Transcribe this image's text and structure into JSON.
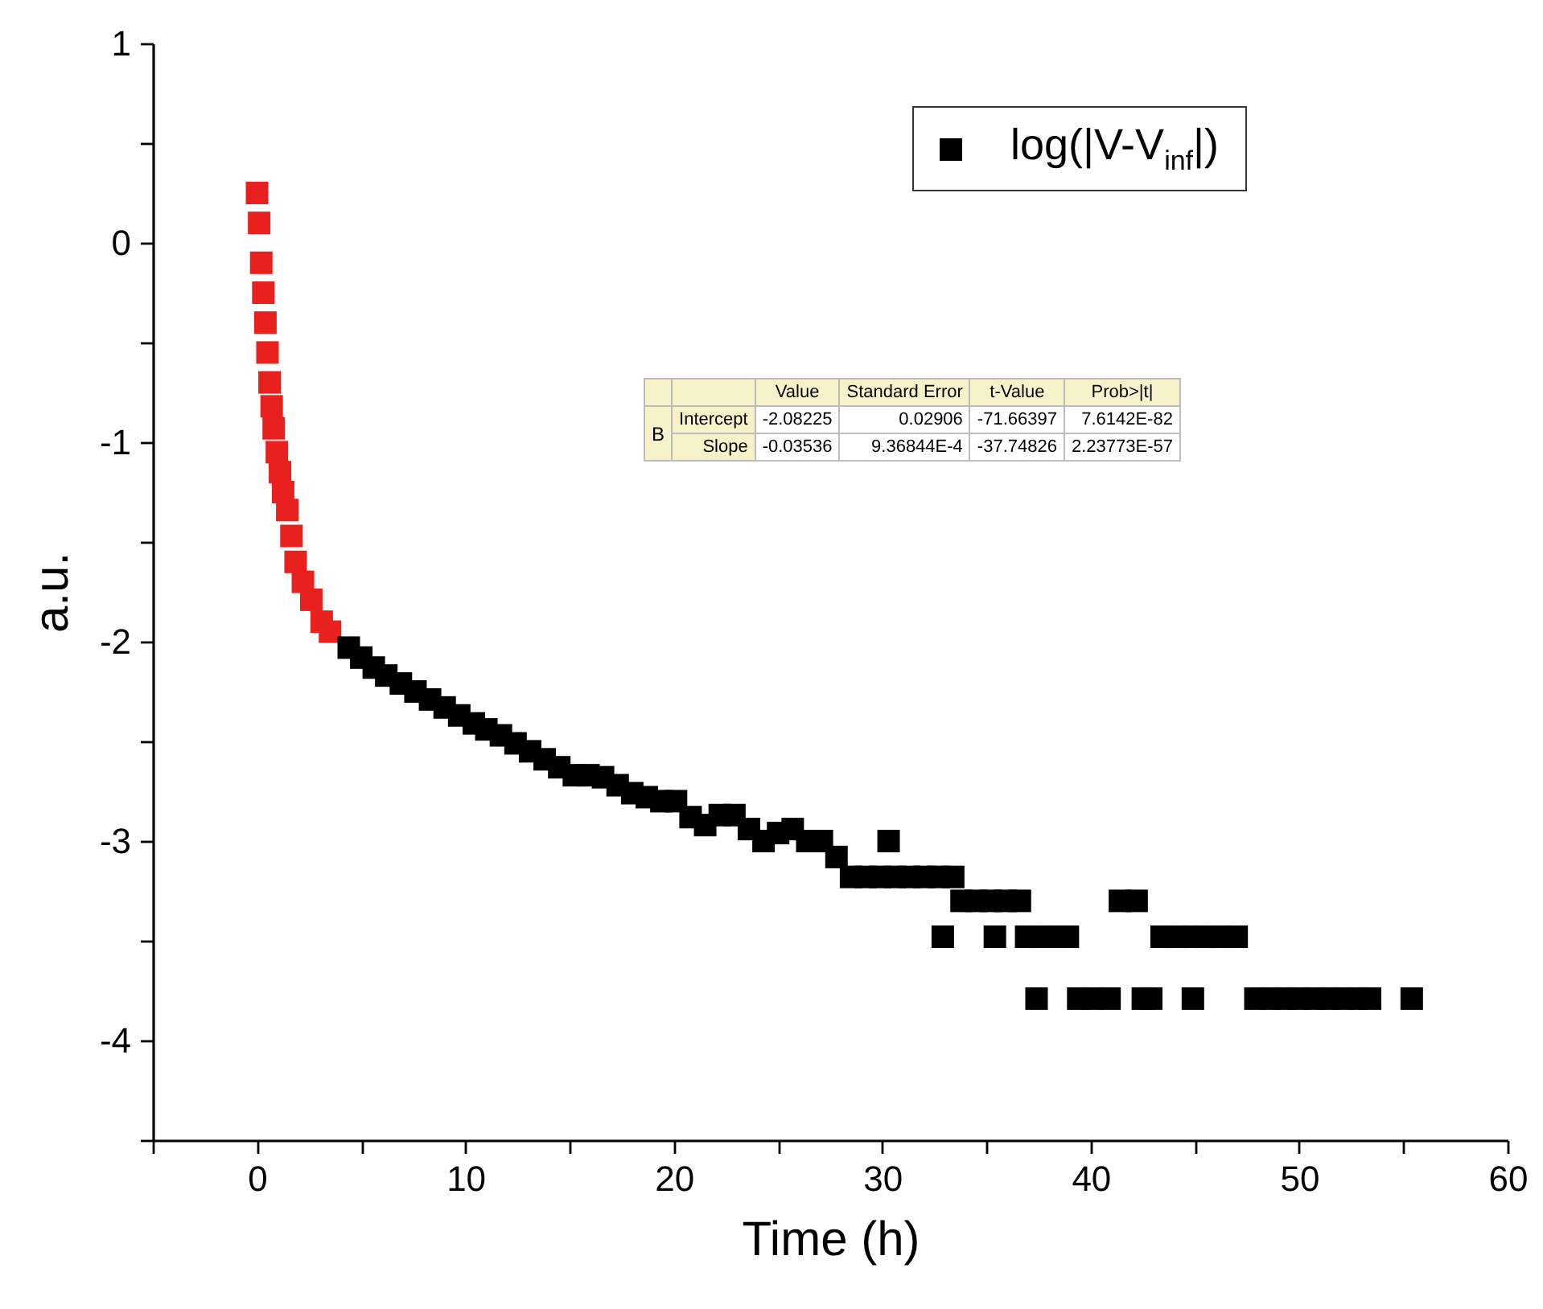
{
  "chart_data": {
    "type": "scatter",
    "xlabel": "Time (h)",
    "ylabel": "a.u.",
    "marker": "square",
    "legend": "top right",
    "grid": false,
    "xlim": [
      -5,
      60
    ],
    "xticks": [
      {
        "value": -5,
        "label": null
      },
      0,
      {
        "value": 5,
        "label": null
      },
      10,
      {
        "value": 15,
        "label": null
      },
      20,
      {
        "value": 25,
        "label": null
      },
      30,
      {
        "value": 35,
        "label": null
      },
      40,
      {
        "value": 45,
        "label": null
      },
      50,
      {
        "value": 55,
        "label": null
      },
      60
    ],
    "ylim": [
      -4.5,
      1
    ],
    "yticks": [
      {
        "value": -4.5,
        "label": null
      },
      -4,
      {
        "value": -3.5,
        "label": null
      },
      -3,
      {
        "value": -2.5,
        "label": null
      },
      -2,
      {
        "value": -1.5,
        "label": null
      },
      -1,
      {
        "value": -0.5,
        "label": null
      },
      0,
      {
        "value": 0.5,
        "label": null
      },
      1
    ],
    "series": [
      {
        "name": "log(|V-V$_{inf}$|)",
        "color": "#000000",
        "x": [
          4.4,
          5.0,
          5.6,
          6.2,
          6.9,
          7.6,
          8.3,
          9.0,
          9.7,
          10.4,
          11.0,
          11.7,
          12.4,
          13.1,
          13.8,
          14.5,
          15.2,
          15.9,
          16.6,
          17.3,
          18.0,
          18.7,
          19.4,
          20.1,
          20.8,
          21.5,
          22.2,
          22.9,
          23.6,
          24.3,
          25.0,
          25.7,
          26.4,
          27.1,
          27.8,
          28.5,
          29.2,
          29.9,
          30.3,
          30.6,
          31.3,
          32.0,
          32.7,
          32.9,
          33.4,
          33.8,
          34.5,
          35.2,
          35.4,
          35.9,
          36.6,
          36.9,
          37.4,
          37.6,
          38.3,
          38.9,
          39.4,
          40.1,
          40.9,
          41.4,
          42.2,
          42.5,
          42.9,
          43.4,
          44.1,
          44.8,
          44.9,
          45.5,
          46.2,
          47.0,
          47.9,
          48.6,
          49.3,
          50.0,
          50.7,
          51.4,
          52.1,
          52.8,
          53.4,
          55.4
        ],
        "values": [
          -2.03,
          -2.08,
          -2.13,
          -2.17,
          -2.21,
          -2.25,
          -2.29,
          -2.33,
          -2.37,
          -2.41,
          -2.44,
          -2.47,
          -2.51,
          -2.55,
          -2.59,
          -2.63,
          -2.67,
          -2.67,
          -2.68,
          -2.72,
          -2.76,
          -2.78,
          -2.8,
          -2.8,
          -2.88,
          -2.92,
          -2.87,
          -2.87,
          -2.94,
          -3.0,
          -2.96,
          -2.94,
          -3.0,
          -3.0,
          -3.08,
          -3.18,
          -3.18,
          -3.18,
          -3.0,
          -3.18,
          -3.18,
          -3.18,
          -3.18,
          -3.48,
          -3.18,
          -3.3,
          -3.3,
          -3.3,
          -3.48,
          -3.3,
          -3.3,
          -3.48,
          -3.79,
          -3.48,
          -3.48,
          -3.48,
          -3.79,
          -3.79,
          -3.79,
          -3.3,
          -3.3,
          -3.79,
          -3.79,
          -3.48,
          -3.48,
          -3.48,
          -3.79,
          -3.48,
          -3.48,
          -3.48,
          -3.79,
          -3.79,
          -3.79,
          -3.79,
          -3.79,
          -3.79,
          -3.79,
          -3.79,
          -3.79,
          -3.79
        ]
      },
      {
        "color": "#e8211f",
        "x": [
          0.0,
          0.1,
          0.2,
          0.3,
          0.4,
          0.5,
          0.6,
          0.7,
          0.8,
          0.95,
          1.1,
          1.25,
          1.45,
          1.65,
          1.85,
          2.2,
          2.6,
          3.1,
          3.5
        ],
        "values": [
          0.25,
          0.1,
          -0.1,
          -0.25,
          -0.4,
          -0.55,
          -0.7,
          -0.82,
          -0.93,
          -1.05,
          -1.15,
          -1.25,
          -1.34,
          -1.47,
          -1.6,
          -1.7,
          -1.79,
          -1.9,
          -1.95
        ]
      }
    ],
    "annotations": [
      "Value",
      "Standard Error",
      "t-Value",
      "Prob>|t|",
      "B",
      "Intercept",
      "-2.08225",
      "0.02906",
      "-71.66397",
      "7.6142E-82",
      "Slope",
      "-0.03536",
      "9.36844E-4",
      "-37.74826",
      "2.23773E-57"
    ]
  }
}
